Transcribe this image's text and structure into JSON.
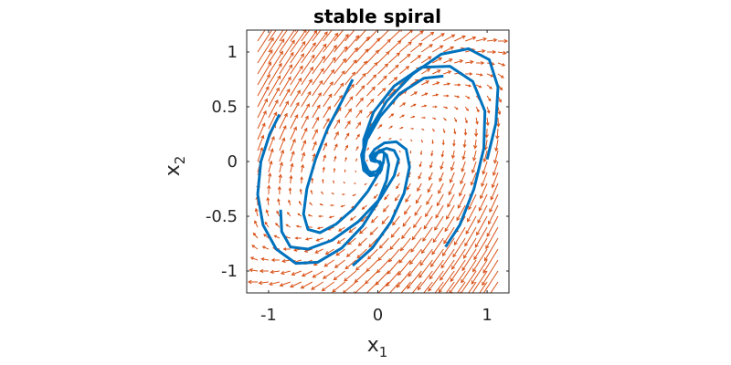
{
  "chart_data": {
    "type": "line",
    "title": "stable spiral",
    "xlabel": {
      "base": "x",
      "sub": "1"
    },
    "ylabel": {
      "base": "x",
      "sub": "2"
    },
    "xlim": [
      -1.2,
      1.2
    ],
    "ylim": [
      -1.2,
      1.2
    ],
    "xticks": [
      {
        "value": -1,
        "label": "-1"
      },
      {
        "value": 0,
        "label": "0"
      },
      {
        "value": 1,
        "label": "1"
      }
    ],
    "yticks": [
      {
        "value": 1,
        "label": "1"
      },
      {
        "value": 0.5,
        "label": "0.5"
      },
      {
        "value": 0,
        "label": "0"
      },
      {
        "value": -0.5,
        "label": "-0.5"
      },
      {
        "value": -1,
        "label": "-1"
      }
    ],
    "grid": false,
    "vector_field": {
      "color": "#D95319",
      "matrix": [
        [
          -0.4,
          1.2
        ],
        [
          -1.2,
          1.2
        ]
      ],
      "grid_min": -1.1,
      "grid_max": 1.1,
      "grid_step": 0.1
    },
    "series": [
      {
        "color": "#0072BD",
        "x": [
          -0.23,
          -0.33,
          -0.46,
          -0.57,
          -0.65,
          -0.68,
          -0.64,
          -0.53,
          -0.38,
          -0.22,
          -0.09,
          0.0,
          0.05,
          0.06,
          0.04,
          0.01,
          -0.02,
          -0.04,
          -0.04,
          -0.02,
          0.0
        ],
        "y": [
          0.75,
          0.55,
          0.3,
          0.02,
          -0.25,
          -0.48,
          -0.62,
          -0.65,
          -0.57,
          -0.43,
          -0.27,
          -0.12,
          -0.01,
          0.07,
          0.1,
          0.09,
          0.06,
          0.03,
          0.01,
          0.0,
          0.0
        ]
      },
      {
        "color": "#0072BD",
        "x": [
          -0.9,
          -0.99,
          -1.07,
          -1.1,
          -1.05,
          -0.93,
          -0.75,
          -0.55,
          -0.33,
          -0.14,
          0.0,
          0.08,
          0.1,
          0.08,
          0.04,
          0.0,
          -0.02,
          -0.03,
          -0.02,
          0.0
        ],
        "y": [
          0.43,
          0.25,
          0.0,
          -0.3,
          -0.58,
          -0.8,
          -0.93,
          -0.92,
          -0.79,
          -0.59,
          -0.37,
          -0.17,
          -0.03,
          0.06,
          0.09,
          0.08,
          0.05,
          0.03,
          0.01,
          0.0
        ]
      },
      {
        "color": "#0072BD",
        "x": [
          -0.89,
          -0.88,
          -0.8,
          -0.64,
          -0.42,
          -0.18,
          0.02,
          0.15,
          0.19,
          0.15,
          0.08,
          0.02,
          -0.03,
          -0.05,
          -0.04,
          -0.02,
          0.0
        ],
        "y": [
          -0.44,
          -0.64,
          -0.78,
          -0.8,
          -0.72,
          -0.55,
          -0.34,
          -0.13,
          0.02,
          0.1,
          0.12,
          0.1,
          0.07,
          0.04,
          0.02,
          0.01,
          0.0
        ]
      },
      {
        "color": "#0072BD",
        "x": [
          0.6,
          0.42,
          0.2,
          0.02,
          -0.1,
          -0.14,
          -0.11,
          -0.06,
          -0.01,
          0.02,
          0.03,
          0.02,
          0.0
        ],
        "y": [
          0.78,
          0.76,
          0.62,
          0.41,
          0.2,
          0.03,
          -0.07,
          -0.1,
          -0.09,
          -0.05,
          -0.02,
          0.0,
          0.0
        ]
      },
      {
        "color": "#0072BD",
        "x": [
          1.0,
          1.08,
          1.1,
          1.02,
          0.83,
          0.58,
          0.32,
          0.08,
          -0.08,
          -0.15,
          -0.13,
          -0.07,
          -0.01,
          0.03,
          0.04,
          0.02,
          0.0
        ],
        "y": [
          0.02,
          0.35,
          0.68,
          0.93,
          1.03,
          0.98,
          0.8,
          0.55,
          0.28,
          0.06,
          -0.08,
          -0.13,
          -0.12,
          -0.08,
          -0.04,
          -0.01,
          0.0
        ]
      },
      {
        "color": "#0072BD",
        "x": [
          0.62,
          0.75,
          0.88,
          0.97,
          0.98,
          0.87,
          0.66,
          0.4,
          0.15,
          -0.04,
          -0.13,
          -0.13,
          -0.08,
          -0.02,
          0.02,
          0.03,
          0.02,
          0.0
        ],
        "y": [
          -0.78,
          -0.58,
          -0.25,
          0.12,
          0.46,
          0.73,
          0.87,
          0.86,
          0.69,
          0.45,
          0.2,
          0.01,
          -0.1,
          -0.13,
          -0.1,
          -0.05,
          -0.02,
          0.0
        ]
      },
      {
        "color": "#0072BD",
        "x": [
          -0.23,
          -0.05,
          0.12,
          0.24,
          0.29,
          0.26,
          0.17,
          0.06,
          -0.03,
          -0.07,
          -0.06,
          -0.03,
          0.0
        ],
        "y": [
          -0.95,
          -0.79,
          -0.55,
          -0.29,
          -0.05,
          0.11,
          0.18,
          0.17,
          0.11,
          0.05,
          0.01,
          0.0,
          0.0
        ]
      }
    ]
  }
}
